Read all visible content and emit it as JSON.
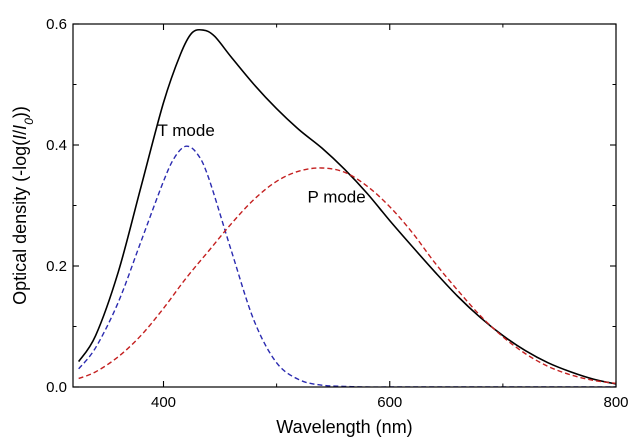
{
  "chart_data": {
    "type": "line",
    "title": "",
    "xlabel": "Wavelength (nm)",
    "ylabel_parts": [
      "Optical density (-log(",
      "I",
      "/",
      "I",
      "0",
      "))"
    ],
    "xlim": [
      320,
      800
    ],
    "ylim": [
      0,
      0.6
    ],
    "x_ticks": [
      400,
      600,
      800
    ],
    "x_tick_labels": [
      "400",
      "600",
      "800"
    ],
    "y_ticks": [
      0.0,
      0.2,
      0.4,
      0.6
    ],
    "y_tick_labels": [
      "0.0",
      "0.2",
      "0.4",
      "0.6"
    ],
    "grid": false,
    "legend": "none",
    "annotations": [
      {
        "text": "T mode",
        "x": 420,
        "y": 0.415
      },
      {
        "text": "P mode",
        "x": 553,
        "y": 0.305
      }
    ],
    "series": [
      {
        "style": "solid",
        "color": "#000000",
        "x": [
          325,
          340,
          360,
          380,
          400,
          415,
          425,
          435,
          445,
          460,
          480,
          500,
          520,
          540,
          560,
          580,
          600,
          620,
          640,
          660,
          680,
          700,
          720,
          740,
          760,
          780,
          800
        ],
        "y": [
          0.042,
          0.085,
          0.19,
          0.33,
          0.47,
          0.55,
          0.585,
          0.59,
          0.58,
          0.545,
          0.5,
          0.46,
          0.425,
          0.395,
          0.36,
          0.32,
          0.275,
          0.232,
          0.19,
          0.15,
          0.115,
          0.085,
          0.06,
          0.04,
          0.025,
          0.013,
          0.005
        ]
      },
      {
        "style": "dashed",
        "color": "#2b2bb0",
        "x": [
          325,
          340,
          360,
          380,
          400,
          410,
          420,
          430,
          440,
          460,
          480,
          500,
          520,
          540,
          560,
          580,
          600,
          640,
          700,
          800
        ],
        "y": [
          0.03,
          0.065,
          0.14,
          0.24,
          0.34,
          0.38,
          0.398,
          0.385,
          0.345,
          0.225,
          0.11,
          0.04,
          0.012,
          0.003,
          0.001,
          0.0,
          0.0,
          0.0,
          0.0,
          0.0
        ]
      },
      {
        "style": "dashed",
        "color": "#c42020",
        "x": [
          325,
          340,
          360,
          380,
          400,
          420,
          440,
          460,
          480,
          500,
          520,
          540,
          560,
          580,
          600,
          620,
          640,
          660,
          680,
          700,
          720,
          740,
          760,
          780,
          800
        ],
        "y": [
          0.014,
          0.025,
          0.05,
          0.085,
          0.13,
          0.18,
          0.225,
          0.27,
          0.31,
          0.34,
          0.357,
          0.362,
          0.355,
          0.332,
          0.298,
          0.255,
          0.205,
          0.16,
          0.118,
          0.083,
          0.055,
          0.034,
          0.02,
          0.011,
          0.006
        ]
      }
    ]
  }
}
